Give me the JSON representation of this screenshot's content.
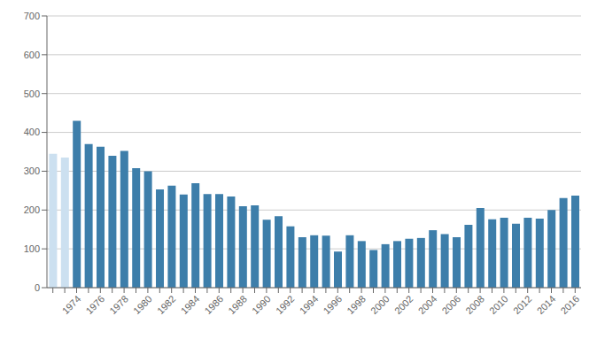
{
  "chart_data": {
    "type": "bar",
    "categories": [
      null,
      null,
      "1974",
      null,
      "1976",
      null,
      "1978",
      null,
      "1980",
      null,
      "1982",
      null,
      "1984",
      null,
      "1986",
      null,
      "1988",
      null,
      "1990",
      null,
      "1992",
      null,
      "1994",
      null,
      "1996",
      null,
      "1998",
      null,
      "2000",
      null,
      "2002",
      null,
      "2004",
      null,
      "2006",
      null,
      "2008",
      null,
      "2010",
      null,
      "2012",
      null,
      "2014",
      null,
      "2016"
    ],
    "values": [
      345,
      335,
      430,
      370,
      363,
      340,
      352,
      308,
      300,
      253,
      263,
      240,
      269,
      241,
      241,
      235,
      210,
      212,
      175,
      184,
      158,
      130,
      135,
      134,
      93,
      135,
      120,
      97,
      112,
      120,
      126,
      128,
      148,
      138,
      130,
      162,
      205,
      176,
      180,
      165,
      180,
      178,
      200,
      231,
      237
    ],
    "colors": [
      "#cce0f0",
      "#cce0f0",
      "#3d7eaa",
      "#3d7eaa",
      "#3d7eaa",
      "#3d7eaa",
      "#3d7eaa",
      "#3d7eaa",
      "#3d7eaa",
      "#3d7eaa",
      "#3d7eaa",
      "#3d7eaa",
      "#3d7eaa",
      "#3d7eaa",
      "#3d7eaa",
      "#3d7eaa",
      "#3d7eaa",
      "#3d7eaa",
      "#3d7eaa",
      "#3d7eaa",
      "#3d7eaa",
      "#3d7eaa",
      "#3d7eaa",
      "#3d7eaa",
      "#3d7eaa",
      "#3d7eaa",
      "#3d7eaa",
      "#3d7eaa",
      "#3d7eaa",
      "#3d7eaa",
      "#3d7eaa",
      "#3d7eaa",
      "#3d7eaa",
      "#3d7eaa",
      "#3d7eaa",
      "#3d7eaa",
      "#3d7eaa",
      "#3d7eaa",
      "#3d7eaa",
      "#3d7eaa",
      "#3d7eaa",
      "#3d7eaa",
      "#3d7eaa",
      "#3d7eaa",
      "#3d7eaa"
    ],
    "ylim": [
      0,
      700
    ],
    "yticks": [
      0,
      100,
      200,
      300,
      400,
      500,
      600,
      700
    ],
    "grid": true
  }
}
